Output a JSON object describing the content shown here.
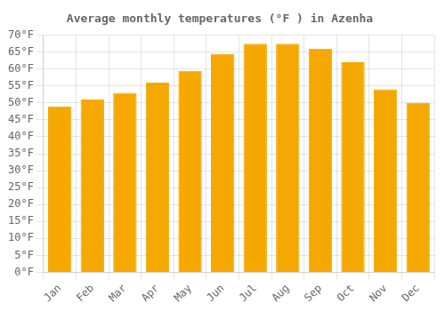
{
  "chart_data": {
    "type": "bar",
    "title": "Average monthly temperatures (°F ) in Azenha",
    "categories": [
      "Jan",
      "Feb",
      "Mar",
      "Apr",
      "May",
      "Jun",
      "Jul",
      "Aug",
      "Sep",
      "Oct",
      "Nov",
      "Dec"
    ],
    "values": [
      49,
      51,
      53,
      56,
      59.5,
      64.5,
      67.5,
      67.5,
      66,
      62,
      54,
      50
    ],
    "color": "#F5A800",
    "ylim": [
      0,
      70
    ],
    "yticks": [
      {
        "value": 0,
        "label": "0°F"
      },
      {
        "value": 5,
        "label": "5°F"
      },
      {
        "value": 10,
        "label": "10°F"
      },
      {
        "value": 15,
        "label": "15°F"
      },
      {
        "value": 20,
        "label": "20°F"
      },
      {
        "value": 25,
        "label": "25°F"
      },
      {
        "value": 30,
        "label": "30°F"
      },
      {
        "value": 35,
        "label": "35°F"
      },
      {
        "value": 40,
        "label": "40°F"
      },
      {
        "value": 45,
        "label": "45°F"
      },
      {
        "value": 50,
        "label": "50°F"
      },
      {
        "value": 55,
        "label": "55°F"
      },
      {
        "value": 60,
        "label": "60°F"
      },
      {
        "value": 65,
        "label": "65°F"
      },
      {
        "value": 70,
        "label": "70°F"
      }
    ],
    "grid": true
  }
}
